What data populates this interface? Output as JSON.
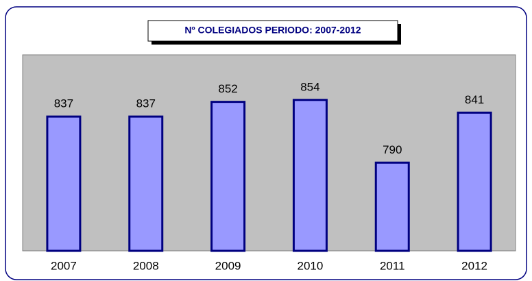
{
  "chart_data": {
    "type": "bar",
    "title": "Nº COLEGIADOS PERIODO: 2007-2012",
    "categories": [
      "2007",
      "2008",
      "2009",
      "2010",
      "2011",
      "2012"
    ],
    "values": [
      837,
      837,
      852,
      854,
      790,
      841
    ],
    "color": "#9999ff",
    "edge_color": "#000080",
    "plot_background": "#c0c0c0",
    "ylim": [
      700,
      900
    ]
  }
}
